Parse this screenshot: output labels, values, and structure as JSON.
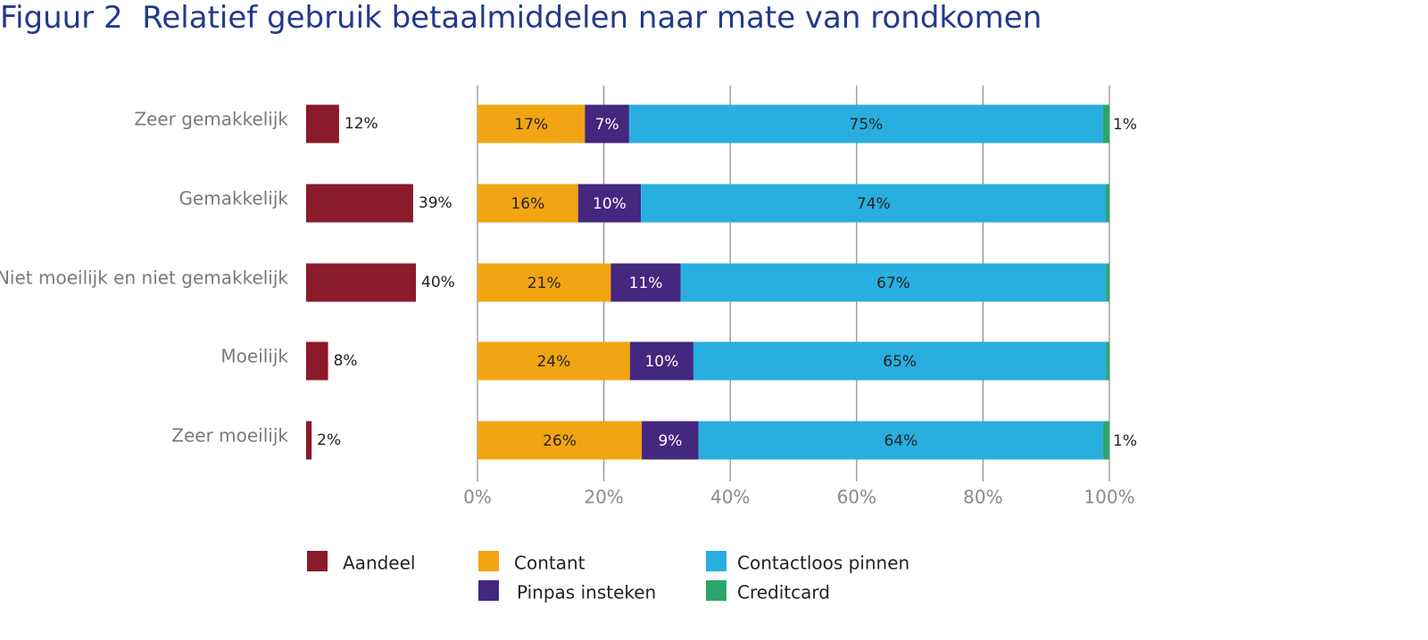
{
  "page": {
    "title_prefix": "Figuur 2",
    "title": "Relatief gebruik betaalmiddelen naar mate van rondkomen"
  },
  "chart_data": [
    {
      "type": "bar",
      "orientation": "horizontal",
      "categories": [
        "Zeer gemakkelijk",
        "Gemakkelijk",
        "Niet moeilijk en niet gemakkelijk",
        "Moeilijk",
        "Zeer moeilijk"
      ],
      "series": [
        {
          "name": "Aandeel",
          "color": "#8b1a2a",
          "values": [
            12,
            39,
            40,
            8,
            2
          ],
          "data_labels": [
            "12%",
            "39%",
            "40%",
            "8%",
            "2%"
          ]
        }
      ]
    },
    {
      "type": "bar",
      "orientation": "horizontal",
      "stacked": true,
      "categories": [
        "Zeer gemakkelijk",
        "Gemakkelijk",
        "Niet moeilijk en niet gemakkelijk",
        "Moeilijk",
        "Zeer moeilijk"
      ],
      "xlim": [
        0,
        100
      ],
      "xticks": [
        "0%",
        "20%",
        "40%",
        "60%",
        "80%",
        "100%"
      ],
      "grid": true,
      "series": [
        {
          "name": "Contant",
          "color": "#f2a512",
          "values": [
            17,
            16,
            21,
            24,
            26
          ],
          "data_labels": [
            "17%",
            "16%",
            "21%",
            "24%",
            "26%"
          ]
        },
        {
          "name": "Pinpas insteken",
          "color": "#44277f",
          "values": [
            7,
            10,
            11,
            10,
            9
          ],
          "data_labels": [
            "7%",
            "10%",
            "11%",
            "10%",
            "9%"
          ]
        },
        {
          "name": "Contactloos pinnen",
          "color": "#29aee0",
          "values": [
            75,
            74,
            67,
            65,
            64
          ],
          "data_labels": [
            "75%",
            "74%",
            "67%",
            "65%",
            "64%"
          ]
        },
        {
          "name": "Creditcard",
          "color": "#2ba66a",
          "values": [
            1,
            0.5,
            0.5,
            0.5,
            1
          ],
          "data_labels": [
            "1%",
            "",
            "",
            "",
            "1%"
          ]
        }
      ],
      "legend_position": "bottom"
    }
  ]
}
